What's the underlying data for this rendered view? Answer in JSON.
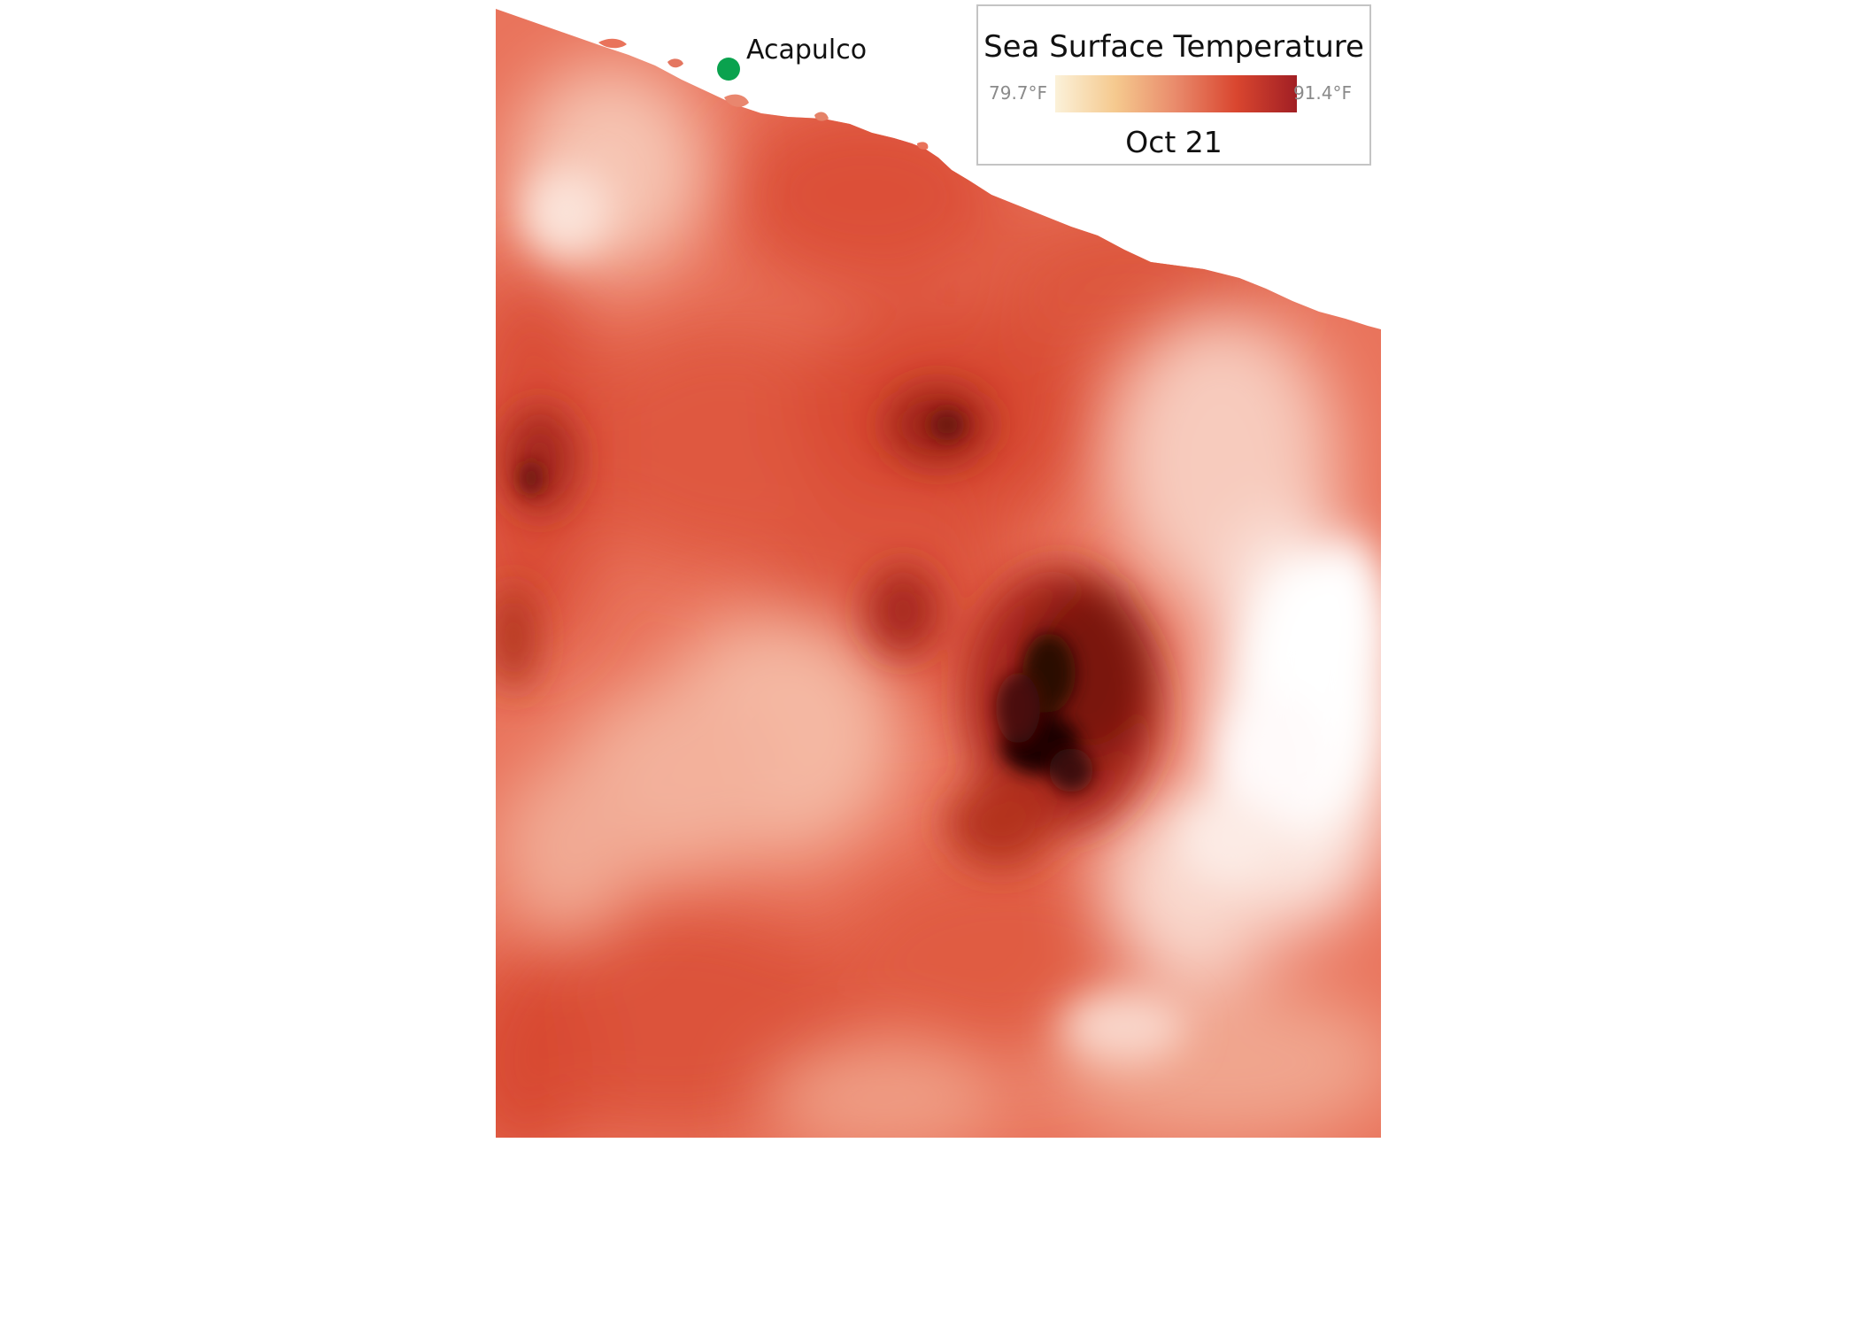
{
  "title": "Sea Surface Temperature",
  "legend": {
    "min_label": "79.7°F",
    "max_label": "91.4°F",
    "min_value_f": 79.7,
    "max_value_f": 91.4,
    "ramp_colors": [
      "#fbf1d9",
      "#f5c98e",
      "#e98a6b",
      "#d9462f",
      "#a11f24"
    ]
  },
  "date_label": "Oct 21",
  "places": [
    {
      "name": "Acapulco",
      "marker_color": "#0aa24e"
    }
  ],
  "colors": {
    "ocean_base": "#e9735b",
    "warm": "#d9462f",
    "hot": "#7a1410",
    "hottest": "#2b0705",
    "cool": "#fdf1ec"
  }
}
